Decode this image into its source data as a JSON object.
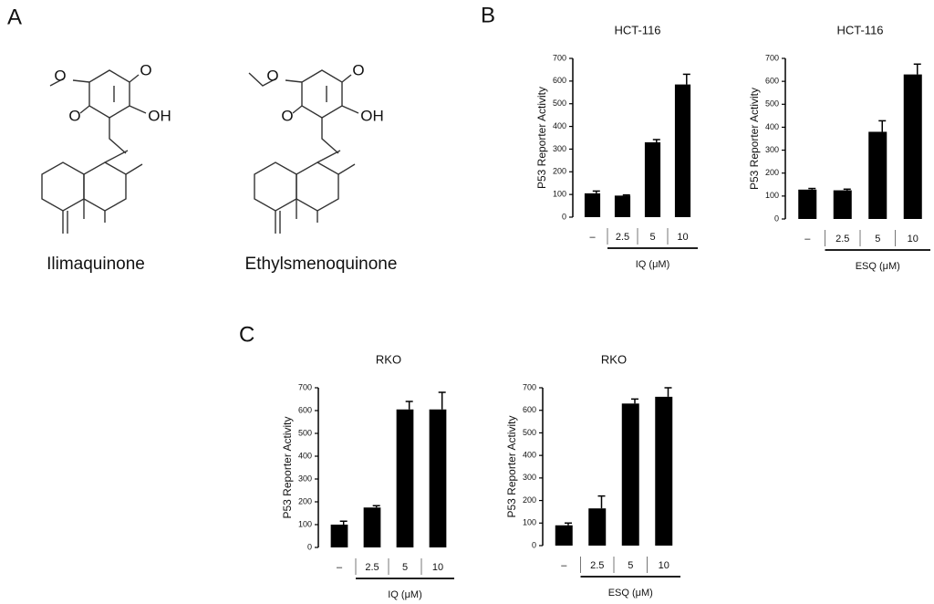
{
  "panel_labels": [
    "A",
    "B",
    "C"
  ],
  "compounds": [
    {
      "name": "Ilimaquinone",
      "atoms": [
        "O",
        "O",
        "O",
        "OH"
      ]
    },
    {
      "name": "Ethylsmenoquinone",
      "atoms": [
        "O",
        "O",
        "O",
        "OH"
      ]
    }
  ],
  "chart_data": [
    {
      "type": "bar",
      "title": "HCT-116",
      "y_label": "P53  Reporter Activity",
      "x_label": "IQ (μM)",
      "categories": [
        "–",
        "2.5",
        "5",
        "10"
      ],
      "values": [
        105,
        95,
        330,
        585
      ],
      "errors": [
        10,
        3,
        12,
        45
      ],
      "color": "#000000",
      "ylim": [
        0,
        700
      ],
      "yticks": [
        0,
        100,
        200,
        300,
        400,
        500,
        600,
        700
      ]
    },
    {
      "type": "bar",
      "title": "HCT-116",
      "y_label": "P53  Reporter Activity",
      "x_label": "ESQ (μM)",
      "categories": [
        "–",
        "2.5",
        "5",
        "10"
      ],
      "values": [
        128,
        125,
        380,
        630
      ],
      "errors": [
        5,
        5,
        48,
        45
      ],
      "color": "#000000",
      "ylim": [
        0,
        700
      ],
      "yticks": [
        0,
        100,
        200,
        300,
        400,
        500,
        600,
        700
      ]
    },
    {
      "type": "bar",
      "title": "RKO",
      "y_label": "P53 Reporter Activity",
      "x_label": "IQ (μM)",
      "categories": [
        "–",
        "2.5",
        "5",
        "10"
      ],
      "values": [
        100,
        175,
        605,
        605
      ],
      "errors": [
        15,
        8,
        35,
        75
      ],
      "color": "#000000",
      "ylim": [
        0,
        700
      ],
      "yticks": [
        0,
        100,
        200,
        300,
        400,
        500,
        600,
        700
      ]
    },
    {
      "type": "bar",
      "title": "RKO",
      "y_label": "P53 Reporter Activity",
      "x_label": "ESQ (μM)",
      "categories": [
        "–",
        "2.5",
        "5",
        "10"
      ],
      "values": [
        90,
        165,
        630,
        660
      ],
      "errors": [
        10,
        55,
        20,
        40
      ],
      "color": "#000000",
      "ylim": [
        0,
        700
      ],
      "yticks": [
        0,
        100,
        200,
        300,
        400,
        500,
        600,
        700
      ]
    }
  ]
}
